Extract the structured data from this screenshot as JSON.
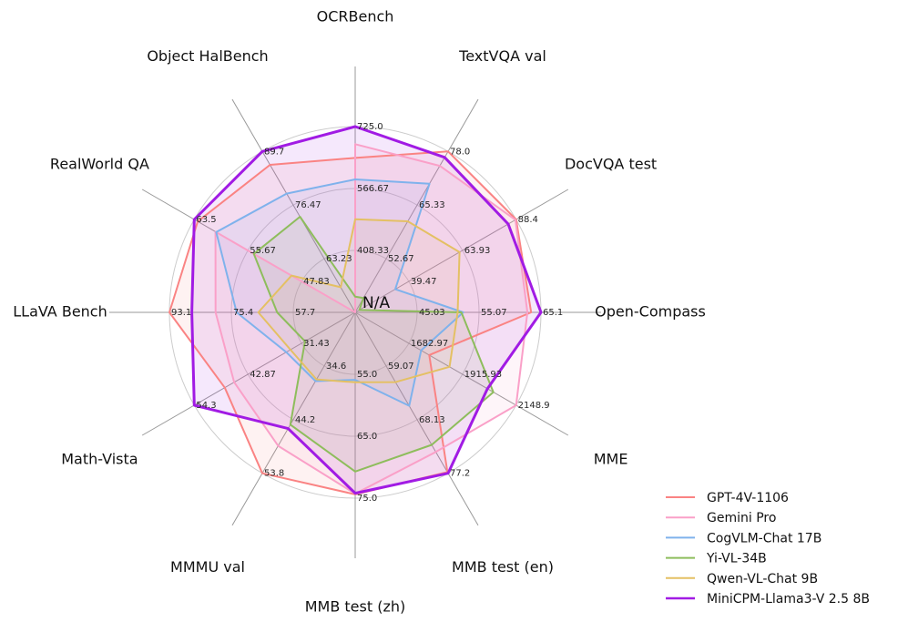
{
  "chart_data": {
    "type": "radar",
    "title": "",
    "center_label": "N/A",
    "grid": {
      "rings": 3,
      "ring_color": "#cccccc",
      "spoke_color": "#999999",
      "background": "#ffffff"
    },
    "legend_position": "lower right",
    "axes": [
      {
        "label": "OCRBench",
        "min": 250,
        "max": 725,
        "ticks": [
          "725.0",
          "566.67",
          "408.33"
        ]
      },
      {
        "label": "TextVQA val",
        "min": 40,
        "max": 78.0,
        "ticks": [
          "78.0",
          "65.33",
          "52.67"
        ]
      },
      {
        "label": "DocVQA test",
        "min": 15,
        "max": 88.4,
        "ticks": [
          "88.4",
          "63.93",
          "39.47"
        ]
      },
      {
        "label": "Open-Compass",
        "min": 35,
        "max": 65.1,
        "ticks": [
          "65.1",
          "55.07",
          "45.03"
        ]
      },
      {
        "label": "MME",
        "min": 1450,
        "max": 2148.9,
        "ticks": [
          "2148.9",
          "1915.93",
          "1682.97"
        ]
      },
      {
        "label": "MMB test (en)",
        "min": 50,
        "max": 77.2,
        "ticks": [
          "77.2",
          "68.13",
          "59.07"
        ]
      },
      {
        "label": "MMB test (zh)",
        "min": 45,
        "max": 75.0,
        "ticks": [
          "75.0",
          "65.0",
          "55.0"
        ]
      },
      {
        "label": "MMMU val",
        "min": 25,
        "max": 53.8,
        "ticks": [
          "53.8",
          "44.2",
          "34.6"
        ]
      },
      {
        "label": "Math-Vista",
        "min": 20,
        "max": 54.3,
        "ticks": [
          "54.3",
          "42.87",
          "31.43"
        ]
      },
      {
        "label": "LLaVA Bench",
        "min": 40,
        "max": 93.1,
        "ticks": [
          "93.1",
          "75.4",
          "57.7"
        ]
      },
      {
        "label": "RealWorld QA",
        "min": 40,
        "max": 63.5,
        "ticks": [
          "63.5",
          "55.67",
          "47.83"
        ]
      },
      {
        "label": "Object HalBench",
        "min": 50,
        "max": 89.7,
        "ticks": [
          "89.7",
          "76.47",
          "63.23"
        ]
      }
    ],
    "series": [
      {
        "name": "GPT-4V-1106",
        "color": "#FA8383",
        "line_width": 2,
        "fill_opacity": 0.1,
        "values": [
          645,
          78.0,
          88.4,
          63.5,
          1771.5,
          77.0,
          74.4,
          53.8,
          47.8,
          93.1,
          63.0,
          86.4
        ]
      },
      {
        "name": "Gemini Pro",
        "color": "#FAA0C8",
        "line_width": 2,
        "fill_opacity": 0.1,
        "values": [
          680,
          74.6,
          88.1,
          62.9,
          2148.9,
          73.6,
          74.3,
          48.9,
          45.8,
          79.9,
          60.4,
          null
        ]
      },
      {
        "name": "CogVLM-Chat 17B",
        "color": "#7FB2EC",
        "line_width": 2,
        "fill_opacity": 0.1,
        "values": [
          590,
          70.4,
          33.3,
          52.5,
          1736.6,
          65.8,
          55.9,
          37.3,
          34.7,
          73.9,
          60.3,
          79.3
        ]
      },
      {
        "name": "Yi-VL-34B",
        "color": "#8EBD5C",
        "line_width": 2,
        "fill_opacity": 0.1,
        "values": [
          290,
          43.4,
          16.9,
          52.2,
          2050.2,
          72.4,
          70.7,
          45.1,
          30.7,
          62.3,
          54.8,
          73.6
        ]
      },
      {
        "name": "Qwen-VL-Chat 9B",
        "color": "#E4C063",
        "line_width": 2,
        "fill_opacity": 0.1,
        "values": [
          488,
          61.5,
          62.6,
          51.6,
          1860.0,
          61.8,
          56.3,
          37.0,
          33.8,
          67.7,
          49.3,
          56.2
        ]
      },
      {
        "name": "MiniCPM-Llama3-V 2.5 8B",
        "color": "#A11BE4",
        "line_width": 3,
        "fill_opacity": 0.1,
        "values": [
          725,
          76.6,
          84.8,
          65.1,
          2024.6,
          77.2,
          74.2,
          45.8,
          54.3,
          86.7,
          63.5,
          89.7
        ]
      }
    ]
  }
}
